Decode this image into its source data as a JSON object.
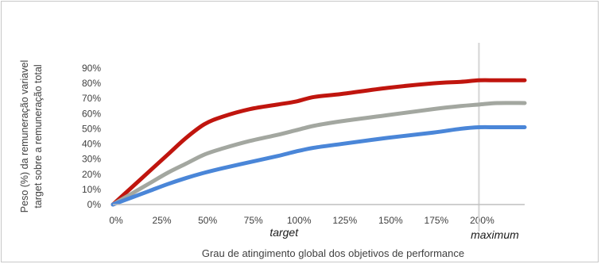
{
  "chart_data": {
    "type": "line",
    "title": "",
    "xlabel": "Grau de atingimento global dos objetivos de performance",
    "ylabel_lines": [
      "Peso (%) da remuneração variavel",
      "target sobre a remuneração total"
    ],
    "x_ticks": [
      "0%",
      "25%",
      "50%",
      "75%",
      "100%",
      "125%",
      "150%",
      "175%",
      "200%"
    ],
    "y_ticks": [
      "0%",
      "10%",
      "20%",
      "30%",
      "40%",
      "50%",
      "60%",
      "70%",
      "80%",
      "90%"
    ],
    "xlim": [
      0,
      225
    ],
    "ylim": [
      0,
      90
    ],
    "grid": false,
    "legend": "none",
    "x": [
      0,
      10,
      20,
      30,
      40,
      50,
      60,
      75,
      90,
      100,
      110,
      125,
      150,
      175,
      190,
      200,
      210,
      225
    ],
    "series": [
      {
        "color": "#c0150e",
        "values": [
          0,
          11,
          22,
          33,
          44,
          53,
          58,
          63,
          66,
          68,
          71,
          73,
          77,
          80,
          81,
          82,
          82,
          82
        ]
      },
      {
        "color": "#a3a7a0",
        "values": [
          0,
          7,
          14,
          21,
          27,
          33,
          37,
          42,
          46,
          49,
          52,
          55,
          59,
          63,
          65,
          66,
          67,
          67
        ]
      },
      {
        "color": "#4a86d8",
        "values": [
          0,
          4.5,
          9,
          13.5,
          17.5,
          21,
          24,
          28,
          32,
          35,
          37.5,
          40,
          44,
          47.5,
          50,
          51,
          51,
          51
        ]
      }
    ],
    "reference_lines": [
      {
        "x": 200,
        "color": "#d4d4d4"
      }
    ],
    "annotations": [
      {
        "text": "target",
        "x": 100
      },
      {
        "text": "maximum",
        "x": 200
      }
    ]
  }
}
